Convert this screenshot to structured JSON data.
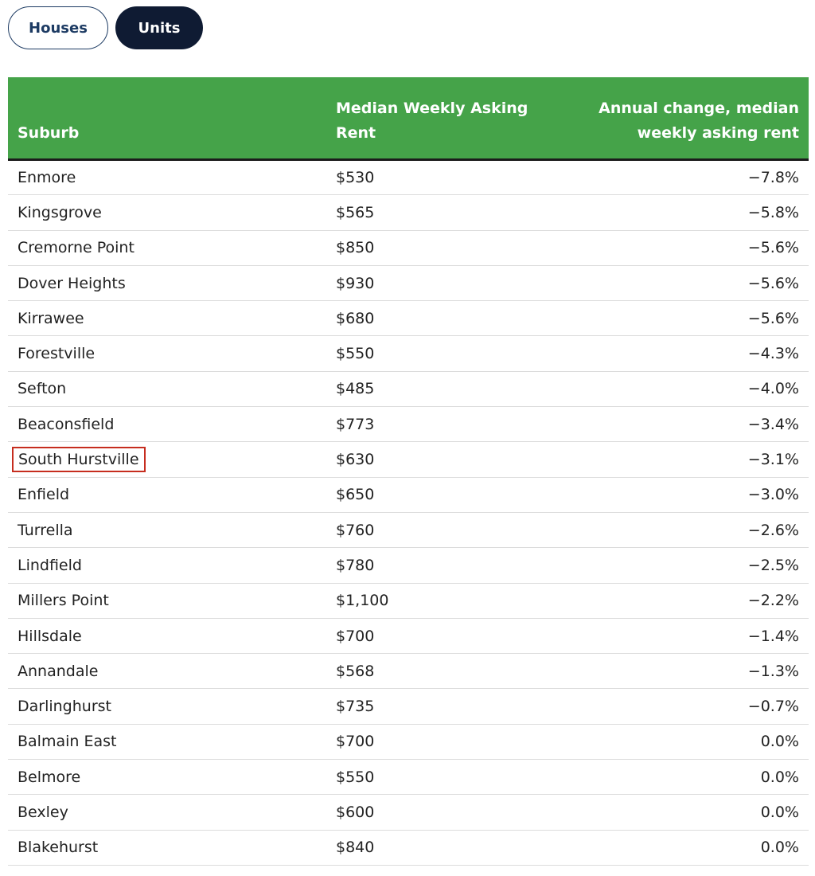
{
  "tabs": [
    "Houses",
    "Units"
  ],
  "table": {
    "headers": [
      "Suburb",
      "Median Weekly Asking Rent",
      "Annual change, median weekly asking rent"
    ],
    "rows": [
      [
        "Enmore",
        "$530",
        "−7.8%"
      ],
      [
        "Kingsgrove",
        "$565",
        "−5.8%"
      ],
      [
        "Cremorne Point",
        "$850",
        "−5.6%"
      ],
      [
        "Dover Heights",
        "$930",
        "−5.6%"
      ],
      [
        "Kirrawee",
        "$680",
        "−5.6%"
      ],
      [
        "Forestville",
        "$550",
        "−4.3%"
      ],
      [
        "Sefton",
        "$485",
        "−4.0%"
      ],
      [
        "Beaconsfield",
        "$773",
        "−3.4%"
      ],
      [
        "South Hurstville",
        "$630",
        "−3.1%"
      ],
      [
        "Enfield",
        "$650",
        "−3.0%"
      ],
      [
        "Turrella",
        "$760",
        "−2.6%"
      ],
      [
        "Lindfield",
        "$780",
        "−2.5%"
      ],
      [
        "Millers Point",
        "$1,100",
        "−2.2%"
      ],
      [
        "Hillsdale",
        "$700",
        "−1.4%"
      ],
      [
        "Annandale",
        "$568",
        "−1.3%"
      ],
      [
        "Darlinghurst",
        "$735",
        "−0.7%"
      ],
      [
        "Balmain East",
        "$700",
        "0.0%"
      ],
      [
        "Belmore",
        "$550",
        "0.0%"
      ],
      [
        "Bexley",
        "$600",
        "0.0%"
      ],
      [
        "Blakehurst",
        "$840",
        "0.0%"
      ]
    ]
  }
}
